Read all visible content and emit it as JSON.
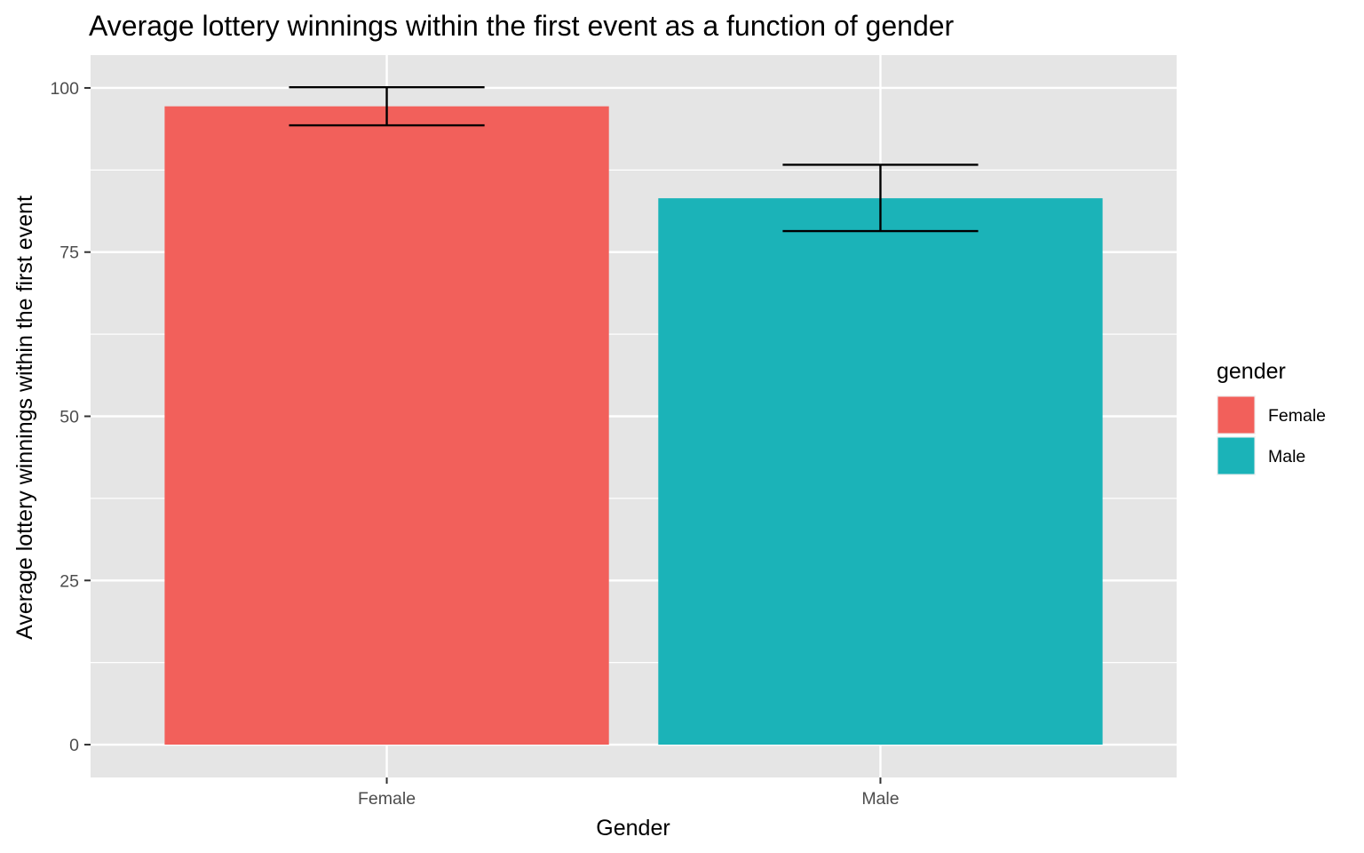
{
  "chart_data": {
    "type": "bar",
    "title": "Average lottery winnings within the first event as a function of gender",
    "xlabel": "Gender",
    "ylabel": "Average lottery winnings within the first event",
    "categories": [
      "Female",
      "Male"
    ],
    "values": [
      97.2,
      83.2
    ],
    "error_bars": [
      {
        "lower": 94.3,
        "upper": 100.1
      },
      {
        "lower": 78.2,
        "upper": 88.3
      }
    ],
    "colors": [
      "#F8766D",
      "#00BFC4"
    ],
    "bar_colors_rendered": [
      "#F2605B",
      "#1BB3B8"
    ],
    "ylim": [
      -5,
      105
    ],
    "yticks": [
      0,
      25,
      50,
      75,
      100
    ],
    "grid": true,
    "panel_background": "#E5E5E5",
    "legend": {
      "title": "gender",
      "position": "right",
      "entries": [
        "Female",
        "Male"
      ]
    }
  }
}
